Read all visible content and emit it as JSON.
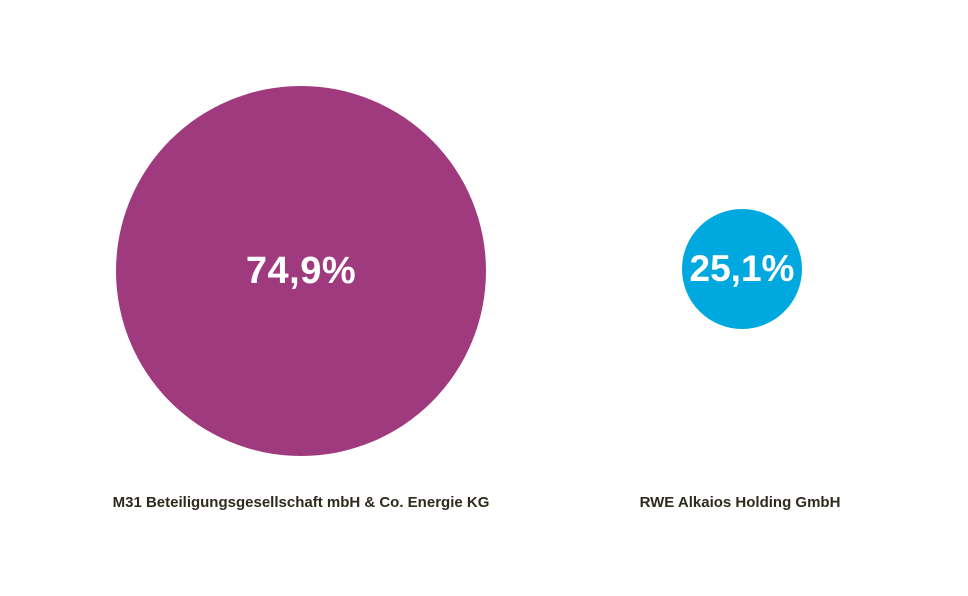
{
  "chart_data": {
    "type": "bubble",
    "title": "",
    "categories": [
      "M31 Beteiligungsgesellschaft mbH & Co. Energie KG",
      "RWE Alkaios Holding GmbH"
    ],
    "values": [
      74.9,
      25.1
    ],
    "value_labels": [
      "74,9%",
      "25,1%"
    ],
    "colors": [
      "#9f3a7e",
      "#00a8e0"
    ],
    "unit": "%",
    "legend": "none",
    "grid": false
  },
  "bubbles": [
    {
      "value_label": "74,9%",
      "label": "M31 Beteiligungsgesellschaft mbH & Co. Energie KG",
      "color": "#9f3a7e"
    },
    {
      "value_label": "25,1%",
      "label": "RWE Alkaios Holding GmbH",
      "color": "#00a8e0"
    }
  ]
}
